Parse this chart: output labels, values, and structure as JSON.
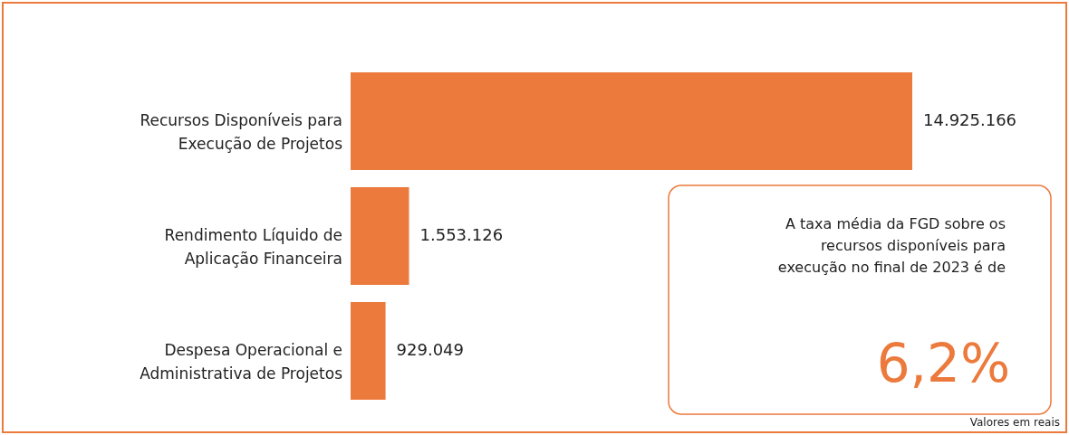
{
  "chart_data": {
    "type": "bar",
    "orientation": "horizontal",
    "value_labels": [
      "14.925.166",
      "1.553.126",
      "929.049"
    ],
    "categories": [
      "Recursos Disponíveis para Execução de Projetos",
      "Rendimento Líquido de Aplicação Financeira",
      "Despesa Operacional e Administrativa de Projetos"
    ],
    "values": [
      14925166,
      1553126,
      929049
    ],
    "color": "#ec7a3c",
    "annotations": [
      "A taxa média da FGD sobre os recursos disponíveis para execução no final de 2023 é de",
      "6,2%",
      "Valores em reais"
    ]
  }
}
